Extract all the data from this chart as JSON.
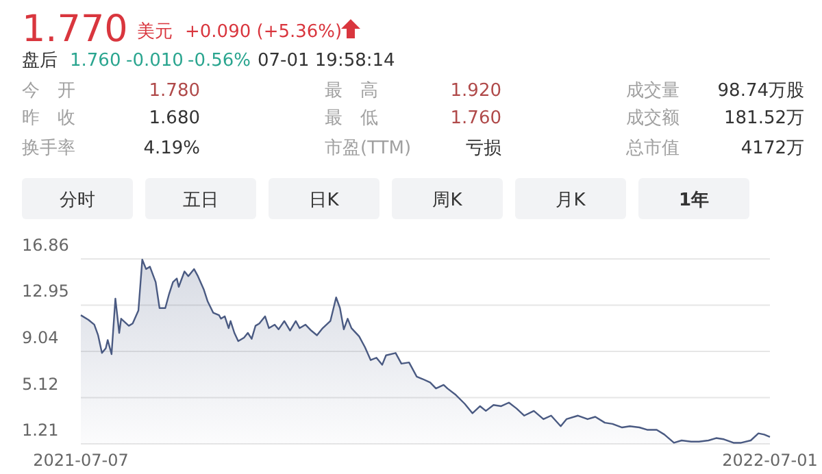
{
  "chart_data": {
    "type": "area",
    "color": "#4a5a82",
    "annotations": [
      "1.770",
      "美元",
      "+0.090 (+5.36%)",
      "盘后",
      "1.760",
      "-0.010",
      "-0.56%",
      "07-01 19:58:14",
      "今　开",
      "1.780",
      "最　高",
      "1.920",
      "成交量",
      "98.74万股",
      "昨　收",
      "1.680",
      "最　低",
      "1.760",
      "成交额",
      "181.52万",
      "换手率",
      "4.19%",
      "市盈(TTM)",
      "亏损",
      "总市值",
      "4172万",
      "分时",
      "五日",
      "日K",
      "周K",
      "月K",
      "1年"
    ],
    "x": [
      "2021-07-07",
      "2021-07-11",
      "2021-07-14",
      "2021-07-16",
      "2021-07-18",
      "2021-07-20",
      "2021-07-21",
      "2021-07-23",
      "2021-07-25",
      "2021-07-27",
      "2021-07-28",
      "2021-08-01",
      "2021-08-03",
      "2021-08-06",
      "2021-08-08",
      "2021-08-10",
      "2021-08-12",
      "2021-08-15",
      "2021-08-17",
      "2021-08-20",
      "2021-08-22",
      "2021-08-24",
      "2021-08-26",
      "2021-08-27",
      "2021-08-30",
      "2021-09-01",
      "2021-09-04",
      "2021-09-06",
      "2021-09-09",
      "2021-09-11",
      "2021-09-14",
      "2021-09-17",
      "2021-09-18",
      "2021-09-20",
      "2021-09-22",
      "2021-09-23",
      "2021-09-25",
      "2021-09-27",
      "2021-09-30",
      "2021-10-02",
      "2021-10-04",
      "2021-10-06",
      "2021-10-08",
      "2021-10-11",
      "2021-10-13",
      "2021-10-16",
      "2021-10-18",
      "2021-10-21",
      "2021-10-24",
      "2021-10-27",
      "2021-10-29",
      "2021-11-01",
      "2021-11-04",
      "2021-11-07",
      "2021-11-10",
      "2021-11-14",
      "2021-11-17",
      "2021-11-19",
      "2021-11-21",
      "2021-11-23",
      "2021-11-25",
      "2021-11-29",
      "2021-12-02",
      "2021-12-05",
      "2021-12-08",
      "2021-12-11",
      "2021-12-13",
      "2021-12-18",
      "2021-12-21",
      "2021-12-25",
      "2021-12-29",
      "2022-01-01",
      "2022-01-05",
      "2022-01-08",
      "2022-01-12",
      "2022-01-14",
      "2022-01-18",
      "2022-01-23",
      "2022-01-27",
      "2022-01-31",
      "2022-02-03",
      "2022-02-07",
      "2022-02-11",
      "2022-02-15",
      "2022-02-19",
      "2022-02-23",
      "2022-02-28",
      "2022-03-05",
      "2022-03-09",
      "2022-03-14",
      "2022-03-17",
      "2022-03-23",
      "2022-03-28",
      "2022-04-01",
      "2022-04-06",
      "2022-04-10",
      "2022-04-15",
      "2022-04-19",
      "2022-04-24",
      "2022-04-28",
      "2022-05-03",
      "2022-05-07",
      "2022-05-12",
      "2022-05-16",
      "2022-05-21",
      "2022-05-25",
      "2022-05-30",
      "2022-06-03",
      "2022-06-07",
      "2022-06-12",
      "2022-06-16",
      "2022-06-21",
      "2022-06-25",
      "2022-06-28",
      "2022-07-01"
    ],
    "values": [
      12.1,
      11.7,
      11.3,
      10.4,
      8.9,
      9.3,
      10.0,
      8.8,
      13.5,
      10.6,
      11.8,
      11.2,
      11.4,
      12.5,
      16.8,
      16.0,
      16.2,
      14.9,
      12.7,
      12.7,
      13.9,
      14.9,
      15.2,
      14.5,
      15.8,
      15.4,
      16.0,
      15.4,
      14.3,
      13.3,
      12.3,
      12.1,
      11.8,
      12.0,
      11.0,
      11.6,
      10.6,
      9.9,
      10.2,
      10.6,
      10.1,
      11.2,
      11.4,
      12.0,
      11.0,
      11.3,
      10.9,
      11.6,
      10.8,
      11.6,
      11.0,
      11.3,
      10.8,
      10.4,
      11.0,
      11.6,
      13.6,
      12.7,
      10.9,
      11.8,
      11.0,
      10.3,
      9.4,
      8.3,
      8.5,
      7.9,
      8.7,
      8.9,
      8.0,
      8.1,
      6.9,
      6.7,
      6.4,
      5.9,
      6.2,
      5.9,
      5.4,
      4.6,
      3.8,
      4.4,
      4.0,
      4.5,
      4.4,
      4.7,
      4.2,
      3.6,
      4.0,
      3.3,
      3.6,
      2.7,
      3.3,
      3.6,
      3.3,
      3.5,
      3.0,
      2.9,
      2.6,
      2.7,
      2.6,
      2.4,
      2.4,
      2.0,
      1.3,
      1.5,
      1.4,
      1.4,
      1.5,
      1.7,
      1.6,
      1.3,
      1.3,
      1.5,
      2.1,
      2.0,
      1.8
    ],
    "xlim": [
      "2021-07-07",
      "2022-07-01"
    ],
    "xticks": [
      "2021-07-07",
      "2022-07-01"
    ],
    "ylim": [
      1.21,
      16.86
    ],
    "yticks": [
      1.21,
      5.12,
      9.04,
      12.95,
      16.86
    ],
    "grid": "y"
  }
}
